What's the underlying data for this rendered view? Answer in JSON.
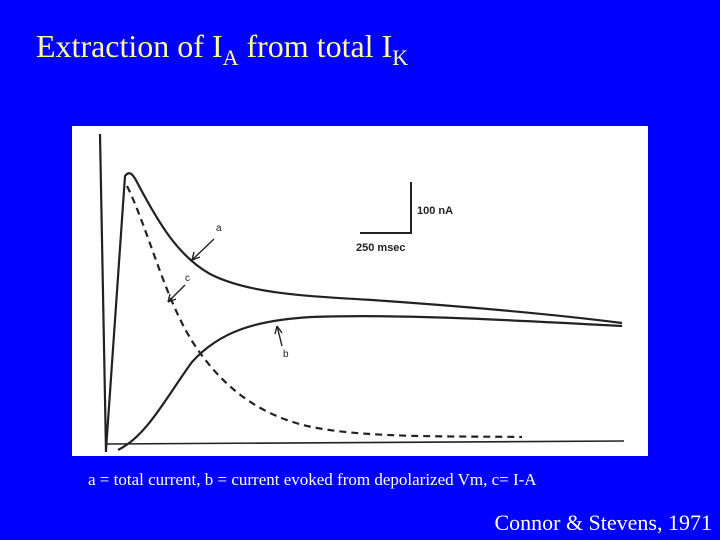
{
  "title": {
    "prefix": "Extraction of I",
    "sub1": "A",
    "middle": " from total I",
    "sub2": "K"
  },
  "figure": {
    "curve_labels": {
      "a": "a",
      "b": "b",
      "c": "c"
    },
    "scale_bar": {
      "vertical_label": "100 nA",
      "horizontal_label": "250 msec"
    },
    "colors": {
      "background": "#ffffff",
      "ink": "#222222"
    }
  },
  "caption": "a = total current, b = current evoked from depolarized Vm, c= I-A",
  "credit": "Connor  & Stevens, 1971",
  "colors": {
    "slide_background": "#0000ff",
    "title": "#ffff99",
    "text": "#ffffff"
  }
}
